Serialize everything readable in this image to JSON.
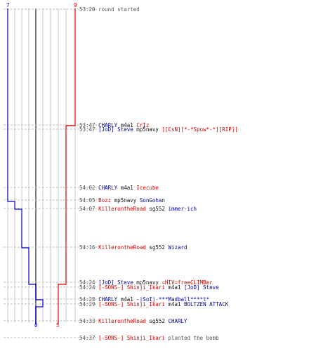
{
  "colors": {
    "team_a": "#0000cc",
    "team_b": "#dd0000",
    "grid": "#c8c8c8",
    "axis": "#7a7a7a",
    "dash": "#c0c0c0",
    "text_time": "#555555"
  },
  "chart_data": {
    "type": "line",
    "title": "",
    "x_axis": {
      "lanes": 10,
      "range": [
        0,
        9
      ]
    },
    "start_counts": {
      "team_a": 7,
      "team_b": 9
    },
    "end_counts": {
      "team_a": 0,
      "team_b": 5
    },
    "series": [
      {
        "team": "team_a",
        "color": "#0000cc",
        "steps": [
          {
            "t": "54:02",
            "value": 7
          },
          {
            "t": "54:05",
            "value": 6
          },
          {
            "t": "54:07",
            "value": 5
          },
          {
            "t": "54:16",
            "value": 4
          },
          {
            "t": "54:24",
            "value": 3
          },
          {
            "t": "54:28",
            "value": 2
          },
          {
            "t": "54:29",
            "value": 1
          },
          {
            "t": "54:33",
            "value": 0
          }
        ]
      },
      {
        "team": "team_b",
        "color": "#dd0000",
        "steps": [
          {
            "t": "53:47",
            "value": 9
          },
          {
            "t": "53:47b",
            "value": 8
          },
          {
            "t": "54:24",
            "value": 7
          },
          {
            "t": "54:24b",
            "value": 6
          },
          {
            "t": "54:29",
            "value": 5
          }
        ]
      }
    ]
  },
  "events": [
    {
      "time": "53:20",
      "parts": [
        {
          "text": "round started",
          "cls": "gray"
        }
      ]
    },
    {
      "time": "53:47",
      "parts": [
        {
          "text": "CHARLY",
          "cls": "blue"
        },
        {
          "text": " m4a1 ",
          "cls": "black"
        },
        {
          "text": "CrIz",
          "cls": "red"
        }
      ]
    },
    {
      "time": "53:47",
      "parts": [
        {
          "text": "[JoD] Steve",
          "cls": "blue"
        },
        {
          "text": " mp5navy ",
          "cls": "black"
        },
        {
          "text": "][CsN][*-*Spow*-*][RIP][",
          "cls": "red"
        }
      ]
    },
    {
      "time": "54:02",
      "parts": [
        {
          "text": "CHARLY",
          "cls": "blue"
        },
        {
          "text": " m4a1 ",
          "cls": "black"
        },
        {
          "text": "Icecube",
          "cls": "red"
        }
      ]
    },
    {
      "time": "54:05",
      "parts": [
        {
          "text": "Bozz",
          "cls": "red"
        },
        {
          "text": " mp5navy ",
          "cls": "black"
        },
        {
          "text": "SonGohan",
          "cls": "blue"
        }
      ]
    },
    {
      "time": "54:07",
      "parts": [
        {
          "text": "KillerontheRoad",
          "cls": "red"
        },
        {
          "text": " sg552 ",
          "cls": "black"
        },
        {
          "text": "immer-ich",
          "cls": "blue"
        }
      ]
    },
    {
      "time": "54:16",
      "parts": [
        {
          "text": "KillerontheRoad",
          "cls": "red"
        },
        {
          "text": " sg552 ",
          "cls": "black"
        },
        {
          "text": "Wizard",
          "cls": "blue"
        }
      ]
    },
    {
      "time": "54:24",
      "parts": [
        {
          "text": "[JoD] Steve",
          "cls": "blue"
        },
        {
          "text": " mp5navy ",
          "cls": "black"
        },
        {
          "text": "=HIV=freeCLIMBer",
          "cls": "red"
        }
      ]
    },
    {
      "time": "54:24",
      "parts": [
        {
          "text": "[-SONS-] Shinji_Ikari",
          "cls": "red"
        },
        {
          "text": " m4a1 ",
          "cls": "black"
        },
        {
          "text": "[JoD] Steve",
          "cls": "blue"
        }
      ]
    },
    {
      "time": "54:28",
      "parts": [
        {
          "text": "CHARLY",
          "cls": "blue"
        },
        {
          "text": " m4a1 ",
          "cls": "black"
        },
        {
          "text": "-|SoI|-***Madball****t*",
          "cls": "blue"
        }
      ]
    },
    {
      "time": "54:29",
      "parts": [
        {
          "text": "[-SONS-] Shinji_Ikari",
          "cls": "red"
        },
        {
          "text": " m4a1 ",
          "cls": "black"
        },
        {
          "text": "BOLTZEN ATTACK",
          "cls": "blue"
        }
      ]
    },
    {
      "time": "54:33",
      "parts": [
        {
          "text": "KillerontheRoad",
          "cls": "red"
        },
        {
          "text": " sg552 ",
          "cls": "black"
        },
        {
          "text": "CHARLY",
          "cls": "blue"
        }
      ]
    },
    {
      "time": "54:37",
      "parts": [
        {
          "text": "[-SONS-] Shinji_Ikari",
          "cls": "red"
        },
        {
          "text": " planted the bomb",
          "cls": "gray"
        }
      ]
    }
  ]
}
